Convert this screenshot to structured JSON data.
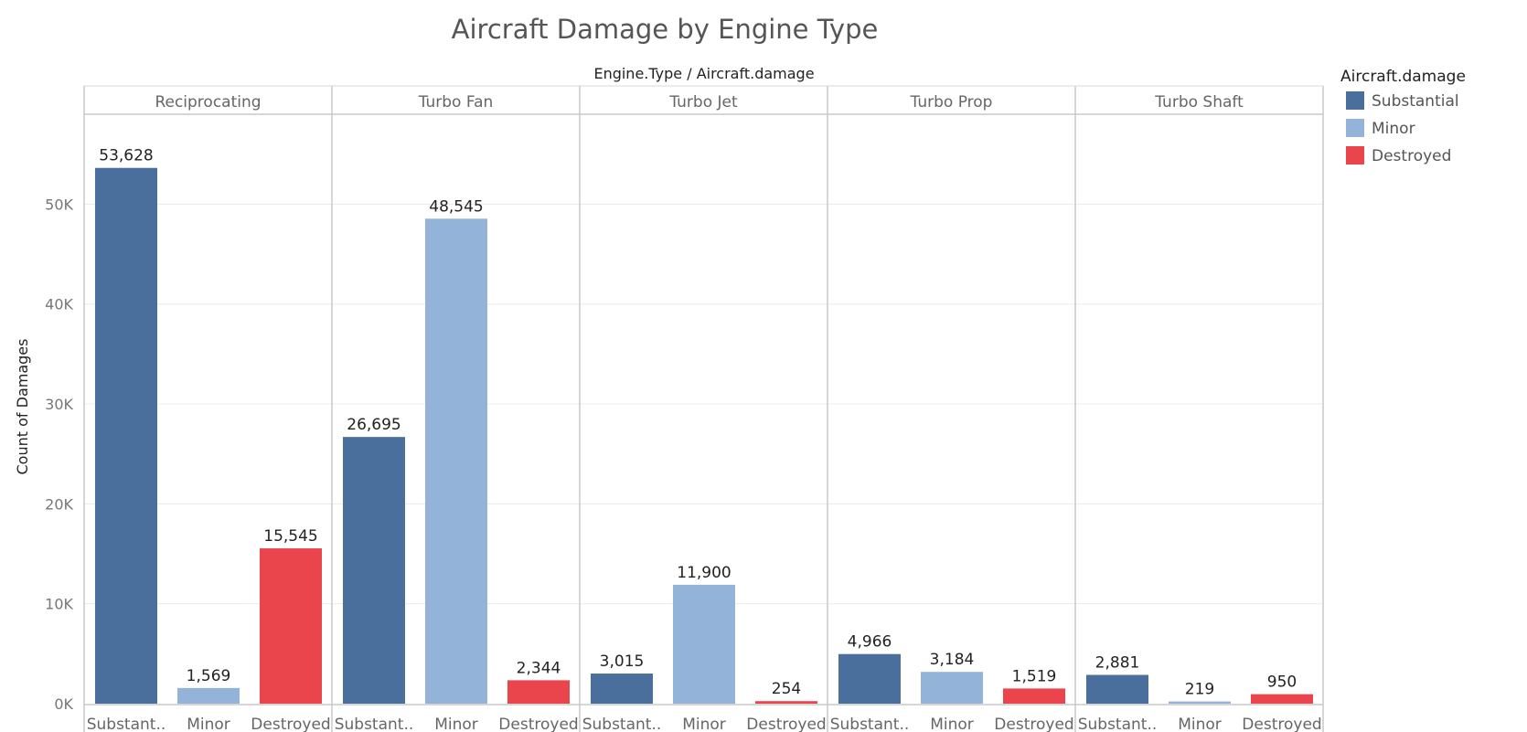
{
  "chart_data": {
    "type": "bar",
    "title": "Aircraft Damage by Engine Type",
    "header_title": "Engine.Type / Aircraft.damage",
    "ylabel": "Count of Damages",
    "ylim": [
      0,
      60000
    ],
    "y_ticks": [
      {
        "value": 0,
        "label": "0K"
      },
      {
        "value": 10000,
        "label": "10K"
      },
      {
        "value": 20000,
        "label": "20K"
      },
      {
        "value": 30000,
        "label": "30K"
      },
      {
        "value": 40000,
        "label": "40K"
      },
      {
        "value": 50000,
        "label": "50K"
      }
    ],
    "grid": true,
    "panels": [
      "Reciprocating",
      "Turbo Fan",
      "Turbo Jet",
      "Turbo Prop",
      "Turbo Shaft"
    ],
    "category_labels": [
      "Substant..",
      "Minor",
      "Destroyed"
    ],
    "series": [
      {
        "name": "Substantial",
        "color": "#4a6f9c",
        "values": [
          53628,
          26695,
          3015,
          4966,
          2881
        ]
      },
      {
        "name": "Minor",
        "color": "#93b3d8",
        "values": [
          1569,
          48545,
          11900,
          3184,
          219
        ]
      },
      {
        "name": "Destroyed",
        "color": "#ea444d",
        "values": [
          15545,
          2344,
          254,
          1519,
          950
        ]
      }
    ],
    "legend": {
      "title": "Aircraft.damage",
      "position": "right"
    }
  }
}
